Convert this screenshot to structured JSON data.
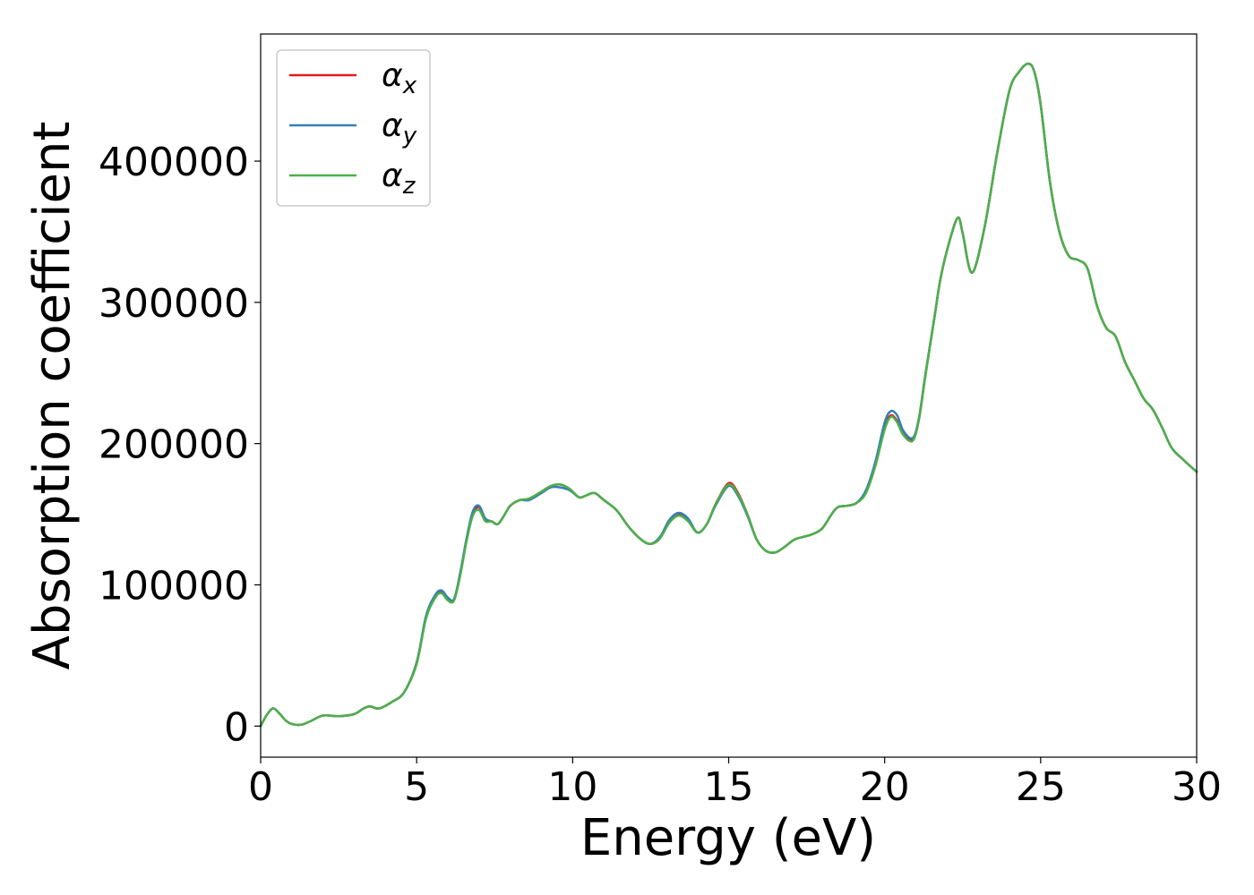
{
  "chart_data": {
    "type": "line",
    "title": "",
    "xlabel": "Energy (eV)",
    "ylabel": "Absorption coefficient",
    "xlim": [
      0,
      30
    ],
    "ylim": [
      -22000,
      490000
    ],
    "xticks": [
      0,
      5,
      10,
      15,
      20,
      25,
      30
    ],
    "yticks": [
      0,
      100000,
      200000,
      300000,
      400000
    ],
    "legend_position": "top-left",
    "grid": false,
    "series": [
      {
        "name": "αx",
        "symbol": "α",
        "subscript": "x",
        "color": "#e41a1c",
        "x": [
          0,
          0.2,
          0.4,
          0.6,
          0.8,
          1,
          1.3,
          1.6,
          2,
          2.5,
          3,
          3.3,
          3.5,
          3.8,
          4.2,
          4.6,
          5,
          5.3,
          5.6,
          5.8,
          6,
          6.2,
          6.4,
          6.6,
          6.8,
          7,
          7.2,
          7.4,
          7.6,
          7.8,
          8,
          8.3,
          8.6,
          9,
          9.3,
          9.6,
          9.9,
          10.2,
          10.4,
          10.7,
          11,
          11.4,
          11.8,
          12.2,
          12.5,
          12.8,
          13.1,
          13.4,
          13.7,
          14,
          14.3,
          14.6,
          15,
          15.3,
          15.6,
          15.9,
          16.2,
          16.5,
          16.8,
          17.1,
          17.4,
          17.7,
          18,
          18.3,
          18.5,
          18.8,
          19.1,
          19.4,
          19.7,
          20,
          20.2,
          20.4,
          20.6,
          20.9,
          21.1,
          21.3,
          21.6,
          21.8,
          22.1,
          22.35,
          22.5,
          22.8,
          23.2,
          23.6,
          24,
          24.3,
          24.6,
          24.8,
          25,
          25.3,
          25.6,
          25.9,
          26.2,
          26.5,
          26.8,
          27.1,
          27.4,
          27.7,
          28,
          28.3,
          28.6,
          28.9,
          29.2,
          29.6,
          30
        ],
        "values": [
          0,
          8000,
          12500,
          9000,
          4000,
          1500,
          1000,
          3500,
          7500,
          7000,
          8500,
          12500,
          14000,
          12500,
          17000,
          24000,
          45000,
          77000,
          92000,
          95000,
          90000,
          90000,
          108000,
          132000,
          150000,
          155000,
          146000,
          145000,
          143000,
          149000,
          156000,
          160000,
          161000,
          166000,
          170000,
          171000,
          168000,
          162000,
          163000,
          165000,
          160000,
          153000,
          141000,
          132000,
          129000,
          133000,
          145000,
          150000,
          146000,
          137000,
          143000,
          158000,
          172000,
          165000,
          150000,
          132000,
          124000,
          123000,
          127000,
          132000,
          134000,
          136000,
          140000,
          150000,
          155000,
          156000,
          158000,
          166000,
          185000,
          212000,
          220000,
          216000,
          207000,
          203000,
          218000,
          248000,
          290000,
          318000,
          345000,
          360000,
          349000,
          321000,
          353000,
          405000,
          450000,
          463000,
          469000,
          463000,
          440000,
          385000,
          350000,
          333000,
          330000,
          324000,
          298000,
          282000,
          276000,
          258000,
          245000,
          232000,
          224000,
          211000,
          197000,
          188000,
          180000
        ]
      },
      {
        "name": "αy",
        "symbol": "α",
        "subscript": "y",
        "color": "#377eb8",
        "x": [
          0,
          0.2,
          0.4,
          0.6,
          0.8,
          1,
          1.3,
          1.6,
          2,
          2.5,
          3,
          3.3,
          3.5,
          3.8,
          4.2,
          4.6,
          5,
          5.3,
          5.6,
          5.8,
          6,
          6.2,
          6.4,
          6.6,
          6.8,
          7,
          7.2,
          7.4,
          7.6,
          7.8,
          8,
          8.3,
          8.6,
          9,
          9.3,
          9.6,
          9.9,
          10.2,
          10.4,
          10.7,
          11,
          11.4,
          11.8,
          12.2,
          12.5,
          12.8,
          13.1,
          13.4,
          13.7,
          14,
          14.3,
          14.6,
          15,
          15.3,
          15.6,
          15.9,
          16.2,
          16.5,
          16.8,
          17.1,
          17.4,
          17.7,
          18,
          18.3,
          18.5,
          18.8,
          19.1,
          19.4,
          19.7,
          20,
          20.2,
          20.4,
          20.6,
          20.9,
          21.1,
          21.3,
          21.6,
          21.8,
          22.1,
          22.35,
          22.5,
          22.8,
          23.2,
          23.6,
          24,
          24.3,
          24.6,
          24.8,
          25,
          25.3,
          25.6,
          25.9,
          26.2,
          26.5,
          26.8,
          27.1,
          27.4,
          27.7,
          28,
          28.3,
          28.6,
          28.9,
          29.2,
          29.6,
          30
        ],
        "values": [
          0,
          8000,
          12500,
          9000,
          4000,
          1500,
          1000,
          3500,
          7500,
          7000,
          8500,
          12500,
          14000,
          12500,
          17000,
          24000,
          45000,
          78000,
          93000,
          96000,
          91000,
          90000,
          109000,
          133000,
          152000,
          156000,
          147000,
          145000,
          143000,
          149000,
          156000,
          160000,
          160000,
          165000,
          169000,
          169000,
          167000,
          162000,
          163000,
          165000,
          160000,
          153000,
          141000,
          132000,
          129000,
          134000,
          146000,
          151000,
          147000,
          137000,
          143000,
          157000,
          170000,
          163000,
          149000,
          132000,
          124000,
          123000,
          127000,
          132000,
          134000,
          136000,
          140000,
          150000,
          155000,
          156000,
          158000,
          167000,
          187000,
          215000,
          223000,
          220000,
          209000,
          204000,
          218000,
          248000,
          290000,
          318000,
          345000,
          360000,
          349000,
          321000,
          353000,
          405000,
          450000,
          463000,
          469000,
          463000,
          440000,
          385000,
          350000,
          333000,
          330000,
          324000,
          298000,
          282000,
          276000,
          258000,
          245000,
          232000,
          224000,
          211000,
          197000,
          188000,
          180000
        ]
      },
      {
        "name": "αz",
        "symbol": "α",
        "subscript": "z",
        "color": "#4daf4a",
        "x": [
          0,
          0.2,
          0.4,
          0.6,
          0.8,
          1,
          1.3,
          1.6,
          2,
          2.5,
          3,
          3.3,
          3.5,
          3.8,
          4.2,
          4.6,
          5,
          5.3,
          5.6,
          5.8,
          6,
          6.2,
          6.4,
          6.6,
          6.8,
          7,
          7.2,
          7.4,
          7.6,
          7.8,
          8,
          8.3,
          8.6,
          9,
          9.3,
          9.6,
          9.9,
          10.2,
          10.4,
          10.7,
          11,
          11.4,
          11.8,
          12.2,
          12.5,
          12.8,
          13.1,
          13.4,
          13.7,
          14,
          14.3,
          14.6,
          15,
          15.3,
          15.6,
          15.9,
          16.2,
          16.5,
          16.8,
          17.1,
          17.4,
          17.7,
          18,
          18.3,
          18.5,
          18.8,
          19.1,
          19.4,
          19.7,
          20,
          20.2,
          20.4,
          20.6,
          20.9,
          21.1,
          21.3,
          21.6,
          21.8,
          22.1,
          22.35,
          22.5,
          22.8,
          23.2,
          23.6,
          24,
          24.3,
          24.6,
          24.8,
          25,
          25.3,
          25.6,
          25.9,
          26.2,
          26.5,
          26.8,
          27.1,
          27.4,
          27.7,
          28,
          28.3,
          28.6,
          28.9,
          29.2,
          29.6,
          30
        ],
        "values": [
          0,
          8000,
          12500,
          9000,
          4000,
          1500,
          1000,
          3500,
          7500,
          7000,
          8500,
          12500,
          14000,
          12500,
          17000,
          24000,
          44000,
          76000,
          91000,
          94000,
          89000,
          89000,
          107000,
          131000,
          149000,
          153000,
          145000,
          145000,
          143000,
          149000,
          156000,
          160000,
          161000,
          166000,
          170000,
          171000,
          168000,
          162000,
          163000,
          165000,
          160000,
          153000,
          141000,
          132000,
          129000,
          133000,
          144000,
          149000,
          145000,
          137000,
          143000,
          158000,
          171000,
          164000,
          150000,
          132000,
          124000,
          123000,
          127000,
          132000,
          134000,
          136000,
          140000,
          150000,
          155000,
          156000,
          158000,
          165000,
          184000,
          210000,
          219000,
          215000,
          206000,
          202000,
          217000,
          247000,
          290000,
          318000,
          345000,
          360000,
          349000,
          321000,
          353000,
          405000,
          450000,
          463000,
          469000,
          463000,
          440000,
          385000,
          350000,
          333000,
          330000,
          324000,
          298000,
          282000,
          276000,
          258000,
          245000,
          232000,
          224000,
          211000,
          197000,
          188000,
          180000
        ]
      }
    ]
  }
}
